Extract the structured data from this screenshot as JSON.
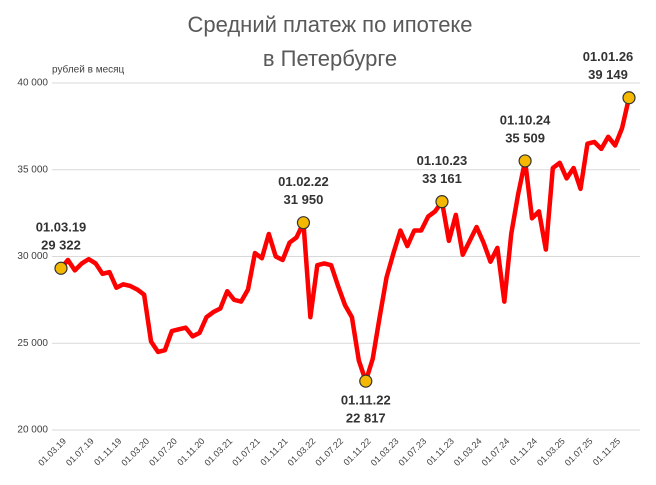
{
  "chart_data": {
    "type": "line",
    "title": [
      "Средний платеж по ипотеке",
      "в Петербурге"
    ],
    "y_axis_label": "рублей в месяц",
    "categories": [
      "01.03.19",
      null,
      null,
      null,
      "01.07.19",
      null,
      null,
      null,
      "01.11.19",
      null,
      null,
      null,
      "01.03.20",
      null,
      null,
      null,
      "01.07.20",
      null,
      null,
      null,
      "01.11.20",
      null,
      null,
      null,
      "01.03.21",
      null,
      null,
      null,
      "01.07.21",
      null,
      null,
      null,
      "01.11.21",
      null,
      null,
      null,
      "01.03.22",
      null,
      null,
      null,
      "01.07.22",
      null,
      null,
      null,
      "01.11.22",
      null,
      null,
      null,
      "01.03.23",
      null,
      null,
      null,
      "01.07.23",
      null,
      null,
      null,
      "01.11.23",
      null,
      null,
      null,
      "01.03.24",
      null,
      null,
      null,
      "01.07.24",
      null,
      null,
      null,
      "01.11.24",
      null,
      null,
      null,
      "01.03.25",
      null,
      null,
      null,
      "01.07.25",
      null,
      null,
      null,
      "01.11.25",
      null,
      null
    ],
    "series": [
      {
        "name": "Средний платеж",
        "color": "#ff0000",
        "values": [
          29322,
          29800,
          29200,
          29600,
          29850,
          29600,
          29000,
          29100,
          28200,
          28400,
          28300,
          28100,
          27800,
          25100,
          24500,
          24600,
          25700,
          25800,
          25900,
          25400,
          25600,
          26500,
          26800,
          27000,
          28000,
          27500,
          27400,
          28100,
          30200,
          29900,
          31300,
          30000,
          29800,
          30800,
          31100,
          31950,
          26500,
          29500,
          29600,
          29500,
          28300,
          27200,
          26500,
          24000,
          22817,
          24100,
          26500,
          28800,
          30200,
          31500,
          30600,
          31500,
          31500,
          32300,
          32600,
          33161,
          30900,
          32400,
          30100,
          30900,
          31700,
          30800,
          29700,
          30500,
          27400,
          31300,
          33600,
          35509,
          32200,
          32600,
          30400,
          35100,
          35400,
          34500,
          35100,
          33900,
          36500,
          36600,
          36200,
          36900,
          36400,
          37400,
          39149
        ],
        "value_labels": [
          "29 322",
          null,
          null,
          null,
          null,
          null,
          null,
          null,
          null,
          null,
          null,
          null,
          null,
          null,
          null,
          null,
          null,
          null,
          null,
          null,
          null,
          null,
          null,
          null,
          null,
          null,
          null,
          null,
          null,
          null,
          null,
          null,
          null,
          null,
          null,
          "31 950",
          null,
          null,
          null,
          null,
          null,
          null,
          null,
          null,
          "22 817",
          null,
          null,
          null,
          null,
          null,
          null,
          null,
          null,
          null,
          null,
          "33 161",
          null,
          null,
          null,
          null,
          null,
          null,
          null,
          null,
          null,
          null,
          null,
          "35 509",
          null,
          null,
          null,
          null,
          null,
          null,
          null,
          null,
          null,
          null,
          null,
          null,
          null,
          null,
          "39 149"
        ],
        "date_labels": [
          "01.03.19",
          null,
          null,
          null,
          null,
          null,
          null,
          null,
          null,
          null,
          null,
          null,
          null,
          null,
          null,
          null,
          null,
          null,
          null,
          null,
          null,
          null,
          null,
          null,
          null,
          null,
          null,
          null,
          null,
          null,
          null,
          null,
          null,
          null,
          null,
          "01.02.22",
          null,
          null,
          null,
          null,
          null,
          null,
          null,
          null,
          "01.11.22",
          null,
          null,
          null,
          null,
          null,
          null,
          null,
          null,
          null,
          null,
          "01.10.23",
          null,
          null,
          null,
          null,
          null,
          null,
          null,
          null,
          null,
          null,
          null,
          "01.10.24",
          null,
          null,
          null,
          null,
          null,
          null,
          null,
          null,
          null,
          null,
          null,
          null,
          null,
          null,
          "01.01.26"
        ],
        "marker_color": "#f5b800"
      }
    ],
    "ylim": [
      20000,
      40000
    ],
    "yticks": [
      {
        "value": 20000,
        "label": "20 000"
      },
      {
        "value": 25000,
        "label": "25 000"
      },
      {
        "value": 30000,
        "label": "30 000"
      },
      {
        "value": 35000,
        "label": "35 000"
      },
      {
        "value": 40000,
        "label": "40 000"
      }
    ],
    "grid": true
  }
}
